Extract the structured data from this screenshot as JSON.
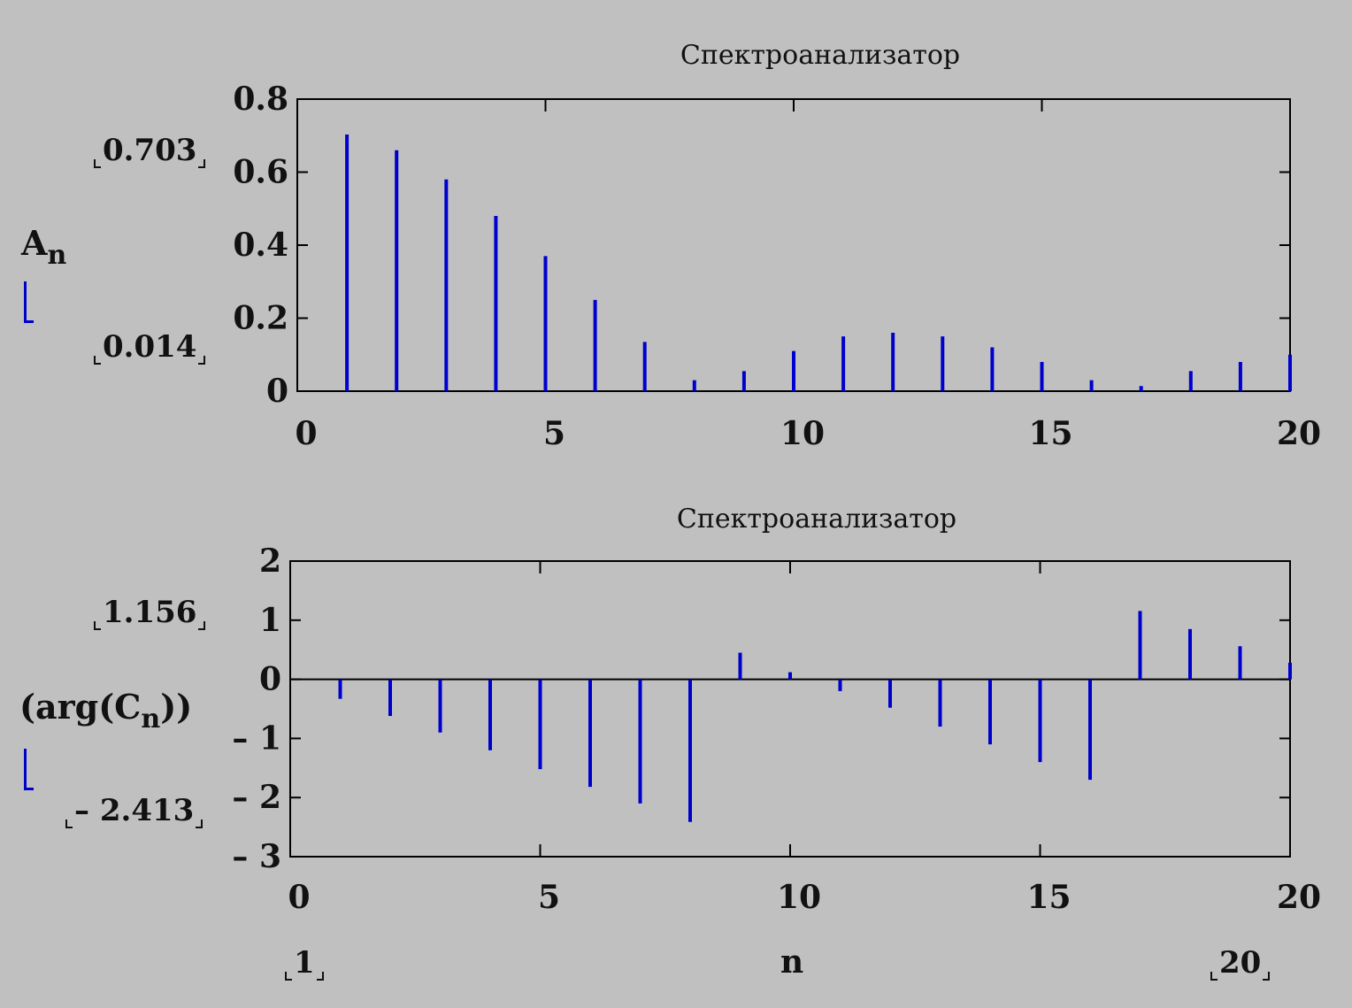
{
  "charts": {
    "top": {
      "limit_max": "0.703",
      "limit_min": "0.014",
      "ylabel_main": "A",
      "ylabel_sub": "n"
    },
    "bottom": {
      "limit_max": "1.156",
      "limit_min": "– 2.413",
      "ylabel_pre": "(arg(C",
      "ylabel_sub": "n",
      "ylabel_post": "))"
    }
  },
  "x_range": {
    "label": "n",
    "min": "1",
    "max": "20"
  },
  "colors": {
    "background": "#c0c0c0",
    "stem": "#0000cc",
    "axis": "#000000"
  },
  "chart_data": [
    {
      "type": "bar",
      "title": "Спектроанализатор",
      "xlabel": "",
      "ylabel": "An",
      "xlim": [
        0,
        20
      ],
      "ylim": [
        0,
        0.8
      ],
      "xticks": [
        0,
        5,
        10,
        15,
        20
      ],
      "yticks": [
        0,
        0.2,
        0.4,
        0.6,
        0.8
      ],
      "ytick_labels": [
        "0",
        "0.2",
        "0.4",
        "0.6",
        "0.8"
      ],
      "x": [
        1,
        2,
        3,
        4,
        5,
        6,
        7,
        8,
        9,
        10,
        11,
        12,
        13,
        14,
        15,
        16,
        17,
        18,
        19,
        20
      ],
      "values": [
        0.703,
        0.66,
        0.58,
        0.48,
        0.37,
        0.25,
        0.135,
        0.03,
        0.055,
        0.11,
        0.15,
        0.16,
        0.15,
        0.12,
        0.08,
        0.03,
        0.014,
        0.055,
        0.08,
        0.1
      ]
    },
    {
      "type": "bar",
      "title": "Спектроанализатор",
      "xlabel": "n",
      "ylabel": "(arg(Cn))",
      "xlim": [
        0,
        20
      ],
      "ylim": [
        -3,
        2
      ],
      "xticks": [
        0,
        5,
        10,
        15,
        20
      ],
      "yticks": [
        -3,
        -2,
        -1,
        0,
        1,
        2
      ],
      "ytick_labels": [
        "– 3",
        "– 2",
        "– 1",
        "0",
        "1",
        "2"
      ],
      "x": [
        1,
        2,
        3,
        4,
        5,
        6,
        7,
        8,
        9,
        10,
        11,
        12,
        13,
        14,
        15,
        16,
        17,
        18,
        19,
        20
      ],
      "values": [
        -0.33,
        -0.62,
        -0.9,
        -1.2,
        -1.52,
        -1.82,
        -2.1,
        -2.413,
        0.45,
        0.12,
        -0.2,
        -0.48,
        -0.8,
        -1.1,
        -1.4,
        -1.7,
        1.156,
        0.85,
        0.56,
        0.28
      ]
    }
  ]
}
